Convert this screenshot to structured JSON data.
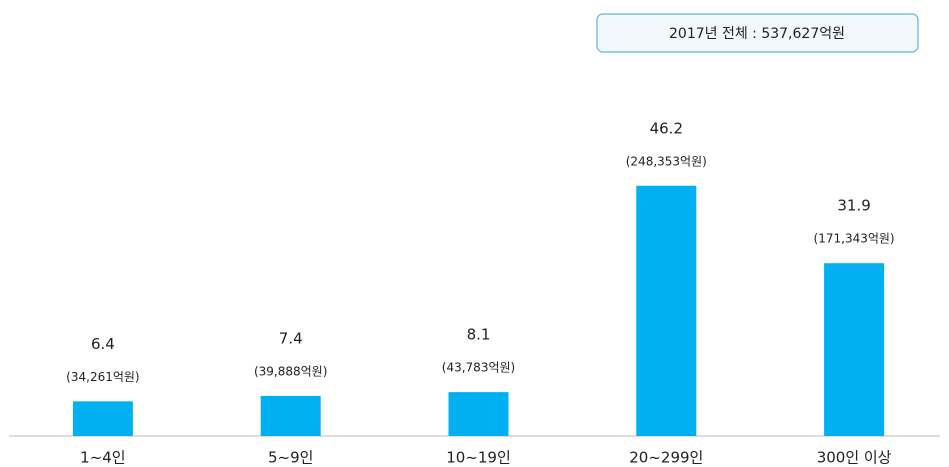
{
  "chart_data": {
    "type": "bar",
    "subtitle": "2017년 전체 : 537,627억원",
    "categories": [
      "1~4인",
      "5~9인",
      "10~19인",
      "20~299인",
      "300인 이상"
    ],
    "values": [
      6.4,
      7.4,
      8.1,
      46.2,
      31.9
    ],
    "annotations": [
      "(34,261억원)",
      "(39,888억원)",
      "(43,783억원)",
      "(248,353억원)",
      "(171,343억원)"
    ],
    "color": "#00b0f0",
    "ylim": [
      0,
      60
    ]
  }
}
